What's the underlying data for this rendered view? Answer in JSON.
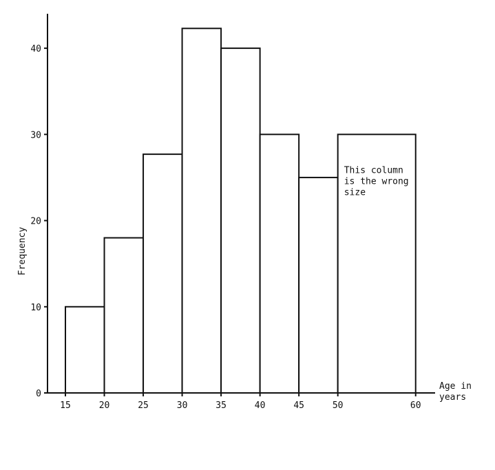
{
  "chart_data": {
    "type": "bar",
    "histogram": true,
    "bins": [
      {
        "from": 15,
        "to": 20,
        "value": 10
      },
      {
        "from": 20,
        "to": 25,
        "value": 18
      },
      {
        "from": 25,
        "to": 30,
        "value": 27.7
      },
      {
        "from": 30,
        "to": 35,
        "value": 42.3
      },
      {
        "from": 35,
        "to": 40,
        "value": 40
      },
      {
        "from": 40,
        "to": 45,
        "value": 30
      },
      {
        "from": 45,
        "to": 50,
        "value": 25
      },
      {
        "from": 50,
        "to": 60,
        "value": 30
      }
    ],
    "x_ticks": [
      "15",
      "20",
      "25",
      "30",
      "35",
      "40",
      "45",
      "50",
      "60"
    ],
    "x_tick_values": [
      15,
      20,
      25,
      30,
      35,
      40,
      45,
      50,
      60
    ],
    "y_ticks": [
      "0",
      "10",
      "20",
      "30",
      "40"
    ],
    "y_tick_values": [
      0,
      10,
      20,
      30,
      40
    ],
    "xlabel_line1": "Age in",
    "xlabel_line2": "years",
    "ylabel": "Frequency",
    "xlim": [
      12.7,
      62.5
    ],
    "ylim": [
      0,
      44
    ],
    "grid": false,
    "annotation": [
      "This column",
      "is the wrong",
      "size"
    ],
    "annotation_x": 50.8,
    "annotation_y": 25.5,
    "colors": {
      "stroke": "#111111",
      "fill": "#ffffff"
    }
  }
}
